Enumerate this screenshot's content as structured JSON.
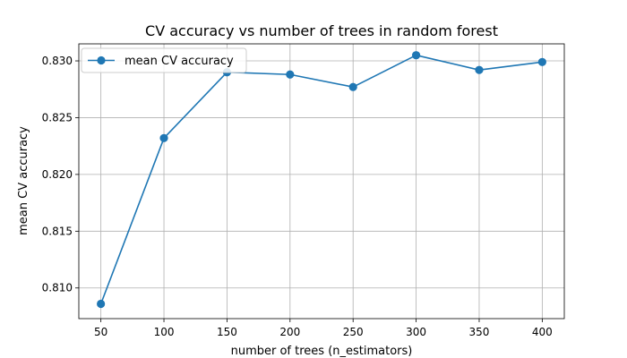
{
  "chart_data": {
    "type": "line",
    "title": "CV accuracy vs number of trees in random forest",
    "xlabel": "number of trees (n_estimators)",
    "ylabel": "mean CV accuracy",
    "x": [
      50,
      100,
      150,
      200,
      250,
      300,
      350,
      400
    ],
    "series": [
      {
        "name": "mean CV accuracy",
        "values": [
          0.8086,
          0.8232,
          0.829,
          0.8288,
          0.8277,
          0.8305,
          0.8292,
          0.8299
        ],
        "color": "#1f77b4",
        "marker": "circle"
      }
    ],
    "xlim": [
      32.5,
      417.5
    ],
    "ylim": [
      0.8073,
      0.8315
    ],
    "xticks": [
      50,
      100,
      150,
      200,
      250,
      300,
      350,
      400
    ],
    "yticks": [
      0.81,
      0.815,
      0.82,
      0.825,
      0.83
    ],
    "ytick_labels": [
      "0.810",
      "0.815",
      "0.820",
      "0.825",
      "0.830"
    ],
    "grid": true,
    "legend_position": "top-left"
  }
}
